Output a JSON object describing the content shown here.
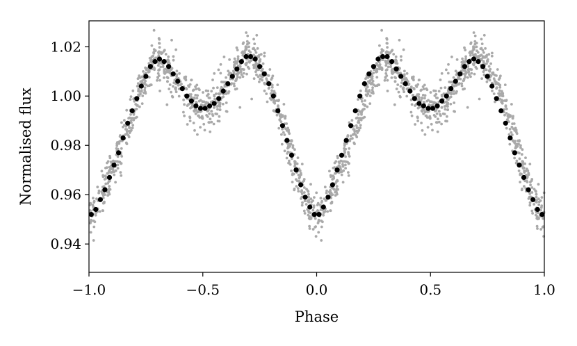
{
  "chart_data": {
    "type": "scatter",
    "xlabel": "Phase",
    "ylabel": "Normalised flux",
    "xlim": [
      -1.0,
      1.0
    ],
    "ylim": [
      0.9285,
      1.0305
    ],
    "xticks": [
      -1.0,
      -0.5,
      0.0,
      0.5,
      1.0
    ],
    "xtick_labels": [
      "−1.0",
      "−0.5",
      "0.0",
      "0.5",
      "1.0"
    ],
    "yticks": [
      0.94,
      0.96,
      0.98,
      1.0,
      1.02
    ],
    "ytick_labels": [
      "0.94",
      "0.96",
      "0.98",
      "1.00",
      "1.02"
    ],
    "grid": false,
    "series": [
      {
        "kind": "raw",
        "color": "#a9a9a9",
        "scatter_sigma": 0.0042,
        "points_per_cycle": 1000
      },
      {
        "kind": "binned",
        "color": "#000000",
        "x": [
          -0.99,
          -0.97,
          -0.95,
          -0.93,
          -0.91,
          -0.89,
          -0.87,
          -0.85,
          -0.83,
          -0.81,
          -0.79,
          -0.77,
          -0.75,
          -0.73,
          -0.71,
          -0.69,
          -0.67,
          -0.65,
          -0.63,
          -0.61,
          -0.59,
          -0.57,
          -0.55,
          -0.53,
          -0.51,
          -0.49,
          -0.47,
          -0.45,
          -0.43,
          -0.41,
          -0.39,
          -0.37,
          -0.35,
          -0.33,
          -0.31,
          -0.29,
          -0.27,
          -0.25,
          -0.23,
          -0.21,
          -0.19,
          -0.17,
          -0.15,
          -0.13,
          -0.11,
          -0.09,
          -0.07,
          -0.05,
          -0.03,
          -0.01,
          0.01,
          0.03,
          0.05,
          0.07,
          0.09,
          0.11,
          0.13,
          0.15,
          0.17,
          0.19,
          0.21,
          0.23,
          0.25,
          0.27,
          0.29,
          0.31,
          0.33,
          0.35,
          0.37,
          0.39,
          0.41,
          0.43,
          0.45,
          0.47,
          0.49,
          0.51,
          0.53,
          0.55,
          0.57,
          0.59,
          0.61,
          0.63,
          0.65,
          0.67,
          0.69,
          0.71,
          0.73,
          0.75,
          0.77,
          0.79,
          0.81,
          0.83,
          0.85,
          0.87,
          0.89,
          0.91,
          0.93,
          0.95,
          0.97,
          0.99
        ],
        "y": [
          0.952,
          0.954,
          0.958,
          0.962,
          0.967,
          0.972,
          0.977,
          0.983,
          0.989,
          0.994,
          0.999,
          1.004,
          1.008,
          1.012,
          1.014,
          1.015,
          1.014,
          1.012,
          1.009,
          1.006,
          1.003,
          1.0,
          0.998,
          0.996,
          0.995,
          0.995,
          0.996,
          0.997,
          0.999,
          1.002,
          1.005,
          1.008,
          1.011,
          1.014,
          1.016,
          1.016,
          1.015,
          1.012,
          1.009,
          1.005,
          1.0,
          0.994,
          0.988,
          0.982,
          0.976,
          0.97,
          0.964,
          0.959,
          0.955,
          0.952,
          0.952,
          0.955,
          0.959,
          0.964,
          0.97,
          0.976,
          0.982,
          0.988,
          0.994,
          1.0,
          1.005,
          1.009,
          1.012,
          1.015,
          1.016,
          1.016,
          1.014,
          1.011,
          1.008,
          1.005,
          1.002,
          0.999,
          0.997,
          0.996,
          0.995,
          0.995,
          0.996,
          0.998,
          1.0,
          1.003,
          1.006,
          1.009,
          1.012,
          1.014,
          1.015,
          1.014,
          1.012,
          1.008,
          1.004,
          0.999,
          0.994,
          0.989,
          0.983,
          0.977,
          0.972,
          0.967,
          0.962,
          0.958,
          0.954,
          0.952
        ]
      }
    ]
  }
}
